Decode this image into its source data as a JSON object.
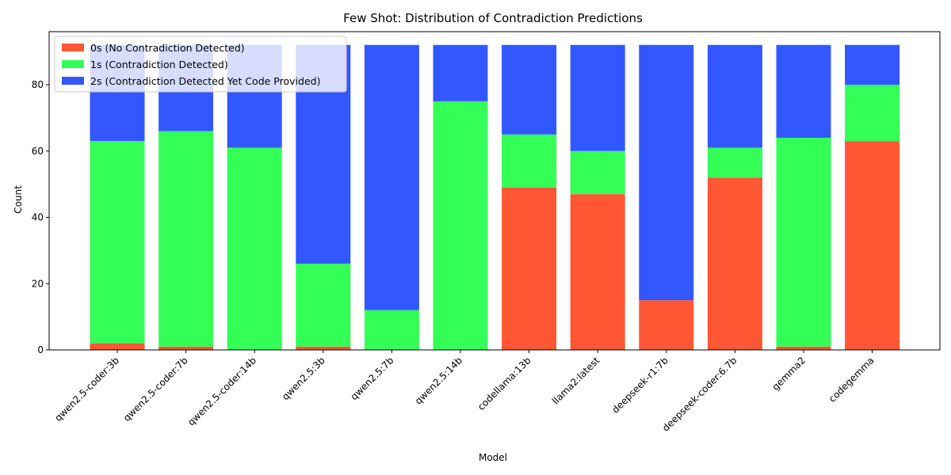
{
  "chart_data": {
    "type": "bar",
    "stacked": true,
    "title": "Few Shot: Distribution of Contradiction Predictions",
    "xlabel": "Model",
    "ylabel": "Count",
    "ylim": [
      0,
      96
    ],
    "yticks": [
      0,
      20,
      40,
      60,
      80
    ],
    "grid": false,
    "legend_position": "top-left",
    "categories": [
      "qwen2.5-coder:3b",
      "qwen2.5-coder:7b",
      "qwen2.5-coder:14b",
      "qwen2.5:3b",
      "qwen2.5:7b",
      "qwen2.5:14b",
      "codellama:13b",
      "llama2:latest",
      "deepseek-r1:7b",
      "deepseek-coder:6.7b",
      "gemma2",
      "codegemma"
    ],
    "series": [
      {
        "name": "0s (No Contradiction Detected)",
        "color": "#ff5733",
        "values": [
          2,
          1,
          0,
          1,
          0,
          0,
          49,
          47,
          15,
          52,
          1,
          63
        ]
      },
      {
        "name": "1s (Contradiction Detected)",
        "color": "#33ff57",
        "values": [
          61,
          65,
          61,
          25,
          12,
          75,
          16,
          13,
          0,
          9,
          63,
          17
        ]
      },
      {
        "name": "2s (Contradiction Detected Yet Code Provided)",
        "color": "#3357ff",
        "values": [
          29,
          26,
          31,
          66,
          80,
          17,
          27,
          32,
          77,
          31,
          28,
          12
        ]
      }
    ]
  }
}
